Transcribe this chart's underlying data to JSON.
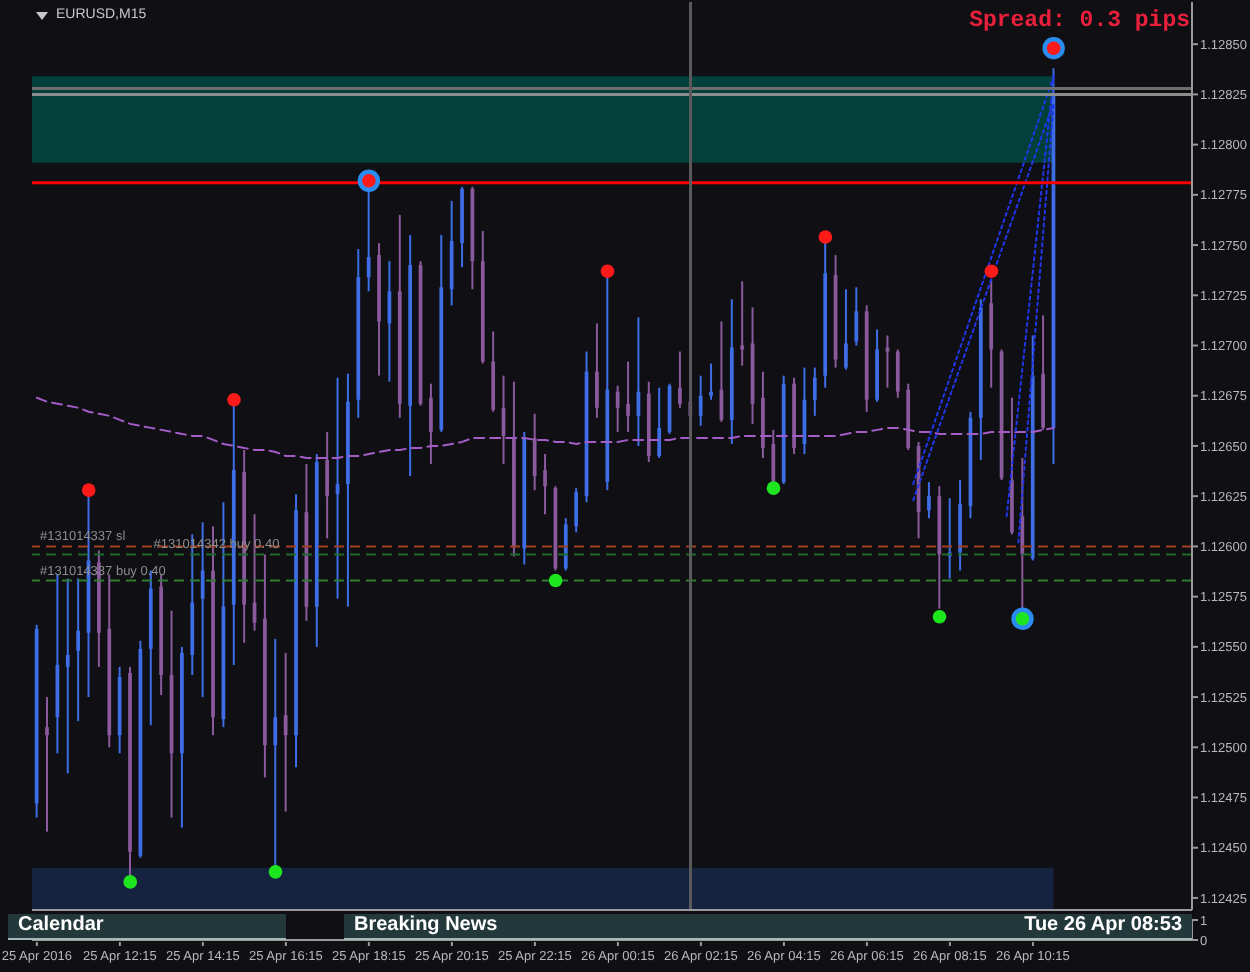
{
  "chart_data": [
    {
      "type": "candlestick",
      "title": "EURUSD,M15",
      "annotations": [
        "Spread: 0.3 pips"
      ],
      "x": [
        "2016-04-25T10:15",
        "2016-04-25T10:30",
        "2016-04-25T10:45",
        "2016-04-25T11:00",
        "2016-04-25T11:15",
        "2016-04-25T11:30",
        "2016-04-25T11:45",
        "2016-04-25T12:00",
        "2016-04-25T12:15",
        "2016-04-25T12:30",
        "2016-04-25T12:45",
        "2016-04-25T13:00",
        "2016-04-25T13:15",
        "2016-04-25T13:30",
        "2016-04-25T13:45",
        "2016-04-25T14:00",
        "2016-04-25T14:15",
        "2016-04-25T14:30",
        "2016-04-25T14:45",
        "2016-04-25T15:00",
        "2016-04-25T15:15",
        "2016-04-25T15:30",
        "2016-04-25T15:45",
        "2016-04-25T16:00",
        "2016-04-25T16:15",
        "2016-04-25T16:30",
        "2016-04-25T16:45",
        "2016-04-25T17:00",
        "2016-04-25T17:15",
        "2016-04-25T17:30",
        "2016-04-25T17:45",
        "2016-04-25T18:00",
        "2016-04-25T18:15",
        "2016-04-25T18:30",
        "2016-04-25T18:45",
        "2016-04-25T19:00",
        "2016-04-25T19:15",
        "2016-04-25T19:30",
        "2016-04-25T19:45",
        "2016-04-25T20:00",
        "2016-04-25T20:15",
        "2016-04-25T20:30",
        "2016-04-25T20:45",
        "2016-04-25T21:00",
        "2016-04-25T21:15",
        "2016-04-25T21:30",
        "2016-04-25T21:45",
        "2016-04-25T22:00",
        "2016-04-25T22:15",
        "2016-04-25T22:30",
        "2016-04-25T22:45",
        "2016-04-25T23:00",
        "2016-04-25T23:15",
        "2016-04-25T23:30",
        "2016-04-25T23:45",
        "2016-04-26T00:00",
        "2016-04-26T00:15",
        "2016-04-26T00:30",
        "2016-04-26T00:45",
        "2016-04-26T01:00",
        "2016-04-26T01:15",
        "2016-04-26T01:30",
        "2016-04-26T01:45",
        "2016-04-26T02:00",
        "2016-04-26T02:15",
        "2016-04-26T02:30",
        "2016-04-26T02:45",
        "2016-04-26T03:00",
        "2016-04-26T03:15",
        "2016-04-26T03:30",
        "2016-04-26T03:45",
        "2016-04-26T04:00",
        "2016-04-26T04:15",
        "2016-04-26T04:30",
        "2016-04-26T04:45",
        "2016-04-26T05:00",
        "2016-04-26T05:15",
        "2016-04-26T05:30",
        "2016-04-26T05:45",
        "2016-04-26T06:00",
        "2016-04-26T06:15",
        "2016-04-26T06:30",
        "2016-04-26T06:45",
        "2016-04-26T07:00",
        "2016-04-26T07:15",
        "2016-04-26T07:30",
        "2016-04-26T07:45",
        "2016-04-26T08:00",
        "2016-04-26T08:15",
        "2016-04-26T08:30",
        "2016-04-26T08:45",
        "2016-04-26T09:00",
        "2016-04-26T09:15",
        "2016-04-26T09:30",
        "2016-04-26T09:45",
        "2016-04-26T10:00",
        "2016-04-26T10:15",
        "2016-04-26T10:30",
        "2016-04-26T10:45"
      ],
      "ohlc": [
        [
          1.12472,
          1.12561,
          1.12465,
          1.12559
        ],
        [
          1.1251,
          1.12525,
          1.12458,
          1.12506
        ],
        [
          1.12515,
          1.12586,
          1.12497,
          1.12541
        ],
        [
          1.1254,
          1.12584,
          1.12487,
          1.12546
        ],
        [
          1.12548,
          1.12584,
          1.12513,
          1.12558
        ],
        [
          1.12557,
          1.12626,
          1.12525,
          1.12593
        ],
        [
          1.12592,
          1.12598,
          1.1254,
          1.12557
        ],
        [
          1.12559,
          1.12586,
          1.125,
          1.12506
        ],
        [
          1.12506,
          1.1254,
          1.12497,
          1.12535
        ],
        [
          1.12537,
          1.1254,
          1.12435,
          1.12448
        ],
        [
          1.12446,
          1.12553,
          1.12445,
          1.12549
        ],
        [
          1.12549,
          1.12588,
          1.12511,
          1.12579
        ],
        [
          1.1258,
          1.12586,
          1.12526,
          1.12536
        ],
        [
          1.12536,
          1.12568,
          1.12465,
          1.12497
        ],
        [
          1.12497,
          1.1255,
          1.1246,
          1.12547
        ],
        [
          1.12546,
          1.12606,
          1.12536,
          1.12572
        ],
        [
          1.12574,
          1.12612,
          1.12525,
          1.12588
        ],
        [
          1.12588,
          1.1261,
          1.12506,
          1.12515
        ],
        [
          1.12514,
          1.12622,
          1.1251,
          1.1257
        ],
        [
          1.12571,
          1.12672,
          1.12541,
          1.12638
        ],
        [
          1.12637,
          1.12648,
          1.12552,
          1.12571
        ],
        [
          1.12572,
          1.12616,
          1.12558,
          1.12562
        ],
        [
          1.12564,
          1.12596,
          1.12485,
          1.12501
        ],
        [
          1.12501,
          1.12554,
          1.12439,
          1.12515
        ],
        [
          1.12516,
          1.12547,
          1.12468,
          1.12506
        ],
        [
          1.12506,
          1.12626,
          1.1249,
          1.12618
        ],
        [
          1.12617,
          1.12641,
          1.12563,
          1.1257
        ],
        [
          1.1257,
          1.12646,
          1.1255,
          1.12642
        ],
        [
          1.12643,
          1.12657,
          1.12604,
          1.12625
        ],
        [
          1.12626,
          1.12684,
          1.12574,
          1.12631
        ],
        [
          1.12631,
          1.12686,
          1.1257,
          1.12672
        ],
        [
          1.12673,
          1.12748,
          1.12664,
          1.12734
        ],
        [
          1.12734,
          1.12781,
          1.12727,
          1.12744
        ],
        [
          1.12745,
          1.12751,
          1.12685,
          1.12712
        ],
        [
          1.12711,
          1.12742,
          1.12682,
          1.12727
        ],
        [
          1.12727,
          1.12765,
          1.12664,
          1.12671
        ],
        [
          1.1267,
          1.12755,
          1.12635,
          1.1274
        ],
        [
          1.1274,
          1.12742,
          1.1267,
          1.12671
        ],
        [
          1.12674,
          1.12681,
          1.12641,
          1.12657
        ],
        [
          1.12658,
          1.12755,
          1.12657,
          1.12729
        ],
        [
          1.12728,
          1.12772,
          1.1272,
          1.12752
        ],
        [
          1.12751,
          1.12779,
          1.12739,
          1.12778
        ],
        [
          1.12778,
          1.12779,
          1.12728,
          1.12742
        ],
        [
          1.12742,
          1.12757,
          1.12691,
          1.12692
        ],
        [
          1.12692,
          1.12707,
          1.12667,
          1.12668
        ],
        [
          1.12669,
          1.12685,
          1.12641,
          1.12655
        ],
        [
          1.12654,
          1.12682,
          1.12595,
          1.126
        ],
        [
          1.12599,
          1.12657,
          1.12591,
          1.12654
        ],
        [
          1.12654,
          1.12666,
          1.12628,
          1.12635
        ],
        [
          1.12638,
          1.12646,
          1.12616,
          1.1263
        ],
        [
          1.12629,
          1.1263,
          1.12588,
          1.12589
        ],
        [
          1.12589,
          1.12614,
          1.12588,
          1.12611
        ],
        [
          1.1261,
          1.12629,
          1.12607,
          1.12627
        ],
        [
          1.12625,
          1.12697,
          1.12622,
          1.12687
        ],
        [
          1.12687,
          1.12711,
          1.12664,
          1.12669
        ],
        [
          1.12632,
          1.12736,
          1.12628,
          1.12678
        ],
        [
          1.12677,
          1.1268,
          1.12657,
          1.12669
        ],
        [
          1.12671,
          1.12692,
          1.12657,
          1.12665
        ],
        [
          1.12665,
          1.12714,
          1.1265,
          1.12677
        ],
        [
          1.12676,
          1.12682,
          1.12642,
          1.12645
        ],
        [
          1.12645,
          1.12679,
          1.12644,
          1.12659
        ],
        [
          1.12657,
          1.12681,
          1.12656,
          1.1268
        ],
        [
          1.12679,
          1.12697,
          1.12669,
          1.12671
        ],
        [
          1.12672,
          1.12673,
          1.12664,
          1.12665
        ],
        [
          1.12665,
          1.12685,
          1.1266,
          1.12675
        ],
        [
          1.12675,
          1.12691,
          1.12673,
          1.12677
        ],
        [
          1.12678,
          1.12712,
          1.12662,
          1.12663
        ],
        [
          1.12663,
          1.12723,
          1.12651,
          1.12699
        ],
        [
          1.127,
          1.12732,
          1.1269,
          1.12698
        ],
        [
          1.12701,
          1.12719,
          1.12661,
          1.12671
        ],
        [
          1.12674,
          1.12687,
          1.12644,
          1.12649
        ],
        [
          1.12651,
          1.12658,
          1.12631,
          1.12632
        ],
        [
          1.12632,
          1.12685,
          1.12631,
          1.12681
        ],
        [
          1.12681,
          1.12684,
          1.12646,
          1.12649
        ],
        [
          1.12651,
          1.12689,
          1.12646,
          1.12673
        ],
        [
          1.12673,
          1.12689,
          1.12665,
          1.12684
        ],
        [
          1.12685,
          1.12752,
          1.12679,
          1.12736
        ],
        [
          1.12735,
          1.12745,
          1.12689,
          1.12693
        ],
        [
          1.12689,
          1.12728,
          1.12688,
          1.12701
        ],
        [
          1.12702,
          1.12729,
          1.127,
          1.12717
        ],
        [
          1.12717,
          1.1272,
          1.12667,
          1.12673
        ],
        [
          1.12673,
          1.12708,
          1.12672,
          1.12698
        ],
        [
          1.12699,
          1.12705,
          1.12679,
          1.12697
        ],
        [
          1.12697,
          1.12698,
          1.12674,
          1.12677
        ],
        [
          1.12678,
          1.12681,
          1.12648,
          1.12649
        ],
        [
          1.1265,
          1.12652,
          1.12604,
          1.12617
        ],
        [
          1.12618,
          1.12632,
          1.12614,
          1.12625
        ],
        [
          1.12625,
          1.1263,
          1.12569,
          1.12596
        ],
        [
          1.12595,
          1.12624,
          1.12584,
          1.12597
        ],
        [
          1.12597,
          1.12633,
          1.12588,
          1.12621
        ],
        [
          1.1262,
          1.12667,
          1.12614,
          1.12664
        ],
        [
          1.12664,
          1.12723,
          1.12643,
          1.12719
        ],
        [
          1.12721,
          1.12733,
          1.12679,
          1.12698
        ],
        [
          1.12697,
          1.12698,
          1.12633,
          1.12634
        ],
        [
          1.12633,
          1.12674,
          1.12606,
          1.12607
        ],
        [
          1.12615,
          1.12644,
          1.12569,
          1.12596
        ],
        [
          1.12594,
          1.12705,
          1.12593,
          1.12685
        ],
        [
          1.12686,
          1.12715,
          1.12658,
          1.12659
        ],
        [
          1.12659,
          1.12838,
          1.12641,
          1.12825
        ]
      ],
      "colors": [
        "#3e6ee6",
        "#8a5a9c",
        "#3e6ee6",
        "#3e6ee6",
        "#3e6ee6",
        "#3e6ee6",
        "#8a5a9c",
        "#8a5a9c",
        "#3e6ee6",
        "#8a5a9c",
        "#3e6ee6",
        "#3e6ee6",
        "#8a5a9c",
        "#8a5a9c",
        "#3e6ee6",
        "#3e6ee6",
        "#3e6ee6",
        "#8a5a9c",
        "#3e6ee6",
        "#3e6ee6",
        "#8a5a9c",
        "#8a5a9c",
        "#8a5a9c",
        "#3e6ee6",
        "#8a5a9c",
        "#3e6ee6",
        "#8a5a9c",
        "#3e6ee6",
        "#8a5a9c",
        "#3e6ee6",
        "#3e6ee6",
        "#3e6ee6",
        "#3e6ee6",
        "#8a5a9c",
        "#3e6ee6",
        "#8a5a9c",
        "#3e6ee6",
        "#8a5a9c",
        "#8a5a9c",
        "#3e6ee6",
        "#3e6ee6",
        "#3e6ee6",
        "#8a5a9c",
        "#8a5a9c",
        "#8a5a9c",
        "#8a5a9c",
        "#8a5a9c",
        "#3e6ee6",
        "#8a5a9c",
        "#8a5a9c",
        "#8a5a9c",
        "#3e6ee6",
        "#3e6ee6",
        "#3e6ee6",
        "#8a5a9c",
        "#3e6ee6",
        "#8a5a9c",
        "#8a5a9c",
        "#3e6ee6",
        "#8a5a9c",
        "#3e6ee6",
        "#3e6ee6",
        "#8a5a9c",
        "#8a5a9c",
        "#3e6ee6",
        "#3e6ee6",
        "#8a5a9c",
        "#3e6ee6",
        "#8a5a9c",
        "#8a5a9c",
        "#8a5a9c",
        "#8a5a9c",
        "#3e6ee6",
        "#8a5a9c",
        "#3e6ee6",
        "#3e6ee6",
        "#3e6ee6",
        "#8a5a9c",
        "#3e6ee6",
        "#3e6ee6",
        "#8a5a9c",
        "#3e6ee6",
        "#8a5a9c",
        "#8a5a9c",
        "#8a5a9c",
        "#8a5a9c",
        "#3e6ee6",
        "#8a5a9c",
        "#3e6ee6",
        "#3e6ee6",
        "#3e6ee6",
        "#3e6ee6",
        "#8a5a9c",
        "#8a5a9c",
        "#8a5a9c",
        "#8a5a9c",
        "#3e6ee6",
        "#8a5a9c",
        "#3e6ee6"
      ],
      "series": [
        {
          "type": "bubble",
          "color": "#2a8cf0",
          "marker": "circle",
          "values": [
            null,
            null,
            null,
            null,
            null,
            null,
            null,
            null,
            null,
            null,
            null,
            null,
            null,
            null,
            null,
            null,
            null,
            null,
            null,
            null,
            null,
            null,
            null,
            null,
            null,
            null,
            null,
            null,
            null,
            null,
            null,
            null,
            1.12782,
            null,
            null,
            null,
            null,
            null,
            null,
            null,
            null,
            null,
            null,
            null,
            null,
            null,
            null,
            null,
            null,
            null,
            null,
            null,
            null,
            null,
            null,
            null,
            null,
            null,
            null,
            null,
            null,
            null,
            null,
            null,
            null,
            null,
            null,
            null,
            null,
            null,
            null,
            null,
            null,
            null,
            null,
            null,
            null,
            null,
            null,
            null,
            null,
            null,
            null,
            null,
            null,
            null,
            null,
            null,
            null,
            null,
            null,
            null,
            null,
            null,
            null,
            1.12564,
            null,
            null,
            1.12848
          ],
          "sizes": [
            null,
            null,
            null,
            null,
            null,
            null,
            null,
            null,
            null,
            null,
            null,
            null,
            null,
            null,
            null,
            null,
            null,
            null,
            null,
            null,
            null,
            null,
            null,
            null,
            null,
            null,
            null,
            null,
            null,
            null,
            null,
            null,
            1,
            null,
            null,
            null,
            null,
            null,
            null,
            null,
            null,
            null,
            null,
            null,
            null,
            null,
            null,
            null,
            null,
            null,
            null,
            null,
            null,
            null,
            null,
            null,
            null,
            null,
            null,
            null,
            null,
            null,
            null,
            null,
            null,
            null,
            null,
            null,
            null,
            null,
            null,
            null,
            null,
            null,
            null,
            null,
            null,
            null,
            null,
            null,
            null,
            null,
            null,
            null,
            null,
            null,
            null,
            null,
            null,
            null,
            null,
            null,
            null,
            null,
            null,
            1,
            null,
            null,
            1
          ]
        },
        {
          "type": "line",
          "color": "#a45cc8",
          "line_style": "dashed",
          "values": [
            1.12674,
            1.12672,
            1.12671,
            1.1267,
            1.12669,
            1.12667,
            1.12666,
            1.12665,
            1.12663,
            1.12661,
            1.1266,
            1.12659,
            1.12658,
            1.12657,
            1.12656,
            1.12655,
            1.12655,
            1.12653,
            1.12651,
            1.1265,
            1.12649,
            1.12648,
            1.12648,
            1.12647,
            1.12645,
            1.12645,
            1.12644,
            1.12644,
            1.12644,
            1.12644,
            1.12645,
            1.12645,
            1.12646,
            1.12647,
            1.12648,
            1.12648,
            1.12649,
            1.12649,
            1.1265,
            1.1265,
            1.12651,
            1.12652,
            1.12654,
            1.12654,
            1.12654,
            1.12654,
            1.12654,
            1.12654,
            1.12653,
            1.12653,
            1.12652,
            1.12652,
            1.12651,
            1.12652,
            1.12652,
            1.12652,
            1.12652,
            1.12653,
            1.12653,
            1.12653,
            1.12653,
            1.12653,
            1.12654,
            1.12654,
            1.12654,
            1.12654,
            1.12654,
            1.12654,
            1.12655,
            1.12655,
            1.12655,
            1.12655,
            1.12655,
            1.12655,
            1.12655,
            1.12655,
            1.12655,
            1.12655,
            1.12656,
            1.12657,
            1.12657,
            1.12658,
            1.12659,
            1.12659,
            1.12658,
            1.12657,
            1.12657,
            1.12656,
            1.12656,
            1.12656,
            1.12656,
            1.12656,
            1.12657,
            1.12657,
            1.12657,
            1.12657,
            1.12657,
            1.12658,
            1.12659
          ]
        },
        {
          "type": "line",
          "color": "#2036e8",
          "line_style": "dotted",
          "x": [
            "2016-04-26T07:22",
            "2016-04-26T10:45"
          ],
          "values": [
            1.12631,
            1.12834
          ]
        },
        {
          "type": "line",
          "color": "#2036e8",
          "line_style": "dotted",
          "x": [
            "2016-04-26T07:22",
            "2016-04-26T10:45"
          ],
          "values": [
            1.12623,
            1.12821
          ]
        },
        {
          "type": "line",
          "color": "#2036e8",
          "line_style": "dotted",
          "x": [
            "2016-04-26T09:37",
            "2016-04-26T10:45"
          ],
          "values": [
            1.12615,
            1.12834
          ]
        },
        {
          "type": "line",
          "color": "#2036e8",
          "line_style": "dotted",
          "x": [
            "2016-04-26T09:54",
            "2016-04-26T10:45"
          ],
          "values": [
            1.12602,
            1.12821
          ]
        },
        {
          "type": "scatter",
          "color": "#ff1a1a",
          "marker": "circle",
          "values": [
            null,
            null,
            null,
            null,
            null,
            1.12628,
            null,
            null,
            null,
            null,
            null,
            null,
            null,
            null,
            null,
            null,
            null,
            null,
            null,
            1.12673,
            null,
            null,
            null,
            null,
            null,
            null,
            null,
            null,
            null,
            null,
            null,
            null,
            1.12782,
            null,
            null,
            null,
            null,
            null,
            null,
            null,
            null,
            null,
            null,
            null,
            null,
            null,
            null,
            null,
            null,
            null,
            null,
            null,
            null,
            null,
            null,
            1.12737,
            null,
            null,
            null,
            null,
            null,
            null,
            null,
            null,
            null,
            null,
            null,
            null,
            null,
            null,
            null,
            null,
            null,
            null,
            null,
            null,
            1.12754,
            null,
            null,
            null,
            null,
            null,
            null,
            null,
            null,
            null,
            null,
            null,
            null,
            null,
            null,
            null,
            1.12737,
            null,
            null,
            null,
            null,
            null,
            1.12848
          ]
        },
        {
          "type": "scatter",
          "color": "#1ee61e",
          "marker": "circle",
          "values": [
            null,
            null,
            null,
            null,
            null,
            null,
            null,
            null,
            null,
            1.12433,
            null,
            null,
            null,
            null,
            null,
            null,
            null,
            null,
            null,
            null,
            null,
            null,
            null,
            1.12438,
            null,
            null,
            null,
            null,
            null,
            null,
            null,
            null,
            null,
            null,
            null,
            null,
            null,
            null,
            null,
            null,
            null,
            null,
            null,
            null,
            null,
            null,
            null,
            null,
            null,
            null,
            1.12583,
            null,
            null,
            null,
            null,
            null,
            null,
            null,
            null,
            null,
            null,
            null,
            null,
            null,
            null,
            null,
            null,
            null,
            null,
            null,
            null,
            1.12629,
            null,
            null,
            null,
            null,
            null,
            null,
            null,
            null,
            null,
            null,
            null,
            null,
            null,
            null,
            null,
            1.12565,
            null,
            null,
            null,
            null,
            null,
            null,
            null,
            1.12564,
            null,
            null,
            null
          ]
        }
      ],
      "xlim": [
        "2016-04-25T10:08",
        "2016-04-26T14:05"
      ],
      "tick_labels": "y",
      "ylim": [
        1.12419,
        1.12871
      ],
      "yticks": [
        {
          "value": 1.12425,
          "label": "1.12425"
        },
        {
          "value": 1.1245,
          "label": "1.12450"
        },
        {
          "value": 1.12475,
          "label": "1.12475"
        },
        {
          "value": 1.125,
          "label": "1.12500"
        },
        {
          "value": 1.12525,
          "label": "1.12525"
        },
        {
          "value": 1.1255,
          "label": "1.12550"
        },
        {
          "value": 1.12575,
          "label": "1.12575"
        },
        {
          "value": 1.126,
          "label": "1.12600"
        },
        {
          "value": 1.12625,
          "label": "1.12625"
        },
        {
          "value": 1.1265,
          "label": "1.12650"
        },
        {
          "value": 1.12675,
          "label": "1.12675"
        },
        {
          "value": 1.127,
          "label": "1.12700"
        },
        {
          "value": 1.12725,
          "label": "1.12725"
        },
        {
          "value": 1.1275,
          "label": "1.12750"
        },
        {
          "value": 1.12775,
          "label": "1.12775"
        },
        {
          "value": 1.128,
          "label": "1.12800"
        },
        {
          "value": 1.12825,
          "label": "1.12825"
        },
        {
          "value": 1.1285,
          "label": "1.12850"
        }
      ],
      "ref_lines": [
        {
          "axis": "y",
          "value": 1.12781,
          "color": "#ff0000"
        },
        {
          "axis": "y",
          "value": 1.12828,
          "color": "#6e6e6e"
        },
        {
          "axis": "y",
          "value": 1.12825,
          "color": "#8c8c8c"
        },
        {
          "axis": "y",
          "value": 1.126,
          "label": "#131014337 sl",
          "color": "#a0401c",
          "line_style": "dashed"
        },
        {
          "axis": "y",
          "value": 1.12596,
          "label": "#131014342 buy 0.40",
          "color": "#1f6b2a",
          "line_style": "dashed"
        },
        {
          "axis": "y",
          "value": 1.12583,
          "label": "#131014337 buy 0.40",
          "color": "#2f7d2f",
          "line_style": "dashed"
        },
        {
          "axis": "x",
          "value": "2016-04-26T02:00",
          "color": "#5a5a5a"
        }
      ],
      "bands": [
        {
          "axis": "y",
          "from": 1.12791,
          "to": 1.12834,
          "color": "#03403b"
        },
        {
          "axis": "y",
          "from": 1.12419,
          "to": 1.1244,
          "color": "#152240"
        }
      ]
    },
    {
      "type": "line",
      "annotations": [
        "Calendar",
        "Breaking News",
        "Tue 26 Apr 08:53"
      ],
      "xlim": [
        "2016-04-25T10:08",
        "2016-04-26T14:05"
      ],
      "xticks": [
        {
          "value": "2016-04-25T10:15",
          "label": "25 Apr 2016"
        },
        {
          "value": "2016-04-25T12:15",
          "label": "25 Apr 12:15"
        },
        {
          "value": "2016-04-25T14:15",
          "label": "25 Apr 14:15"
        },
        {
          "value": "2016-04-25T16:15",
          "label": "25 Apr 16:15"
        },
        {
          "value": "2016-04-25T18:15",
          "label": "25 Apr 18:15"
        },
        {
          "value": "2016-04-25T20:15",
          "label": "25 Apr 20:15"
        },
        {
          "value": "2016-04-25T22:15",
          "label": "25 Apr 22:15"
        },
        {
          "value": "2016-04-26T00:15",
          "label": "26 Apr 00:15"
        },
        {
          "value": "2016-04-26T02:15",
          "label": "26 Apr 02:15"
        },
        {
          "value": "2016-04-26T04:15",
          "label": "26 Apr 04:15"
        },
        {
          "value": "2016-04-26T06:15",
          "label": "26 Apr 06:15"
        },
        {
          "value": "2016-04-26T08:15",
          "label": "26 Apr 08:15"
        },
        {
          "value": "2016-04-26T10:15",
          "label": "26 Apr 10:15"
        }
      ],
      "ylim": [
        0,
        1
      ],
      "yticks": [
        0,
        1
      ]
    }
  ]
}
